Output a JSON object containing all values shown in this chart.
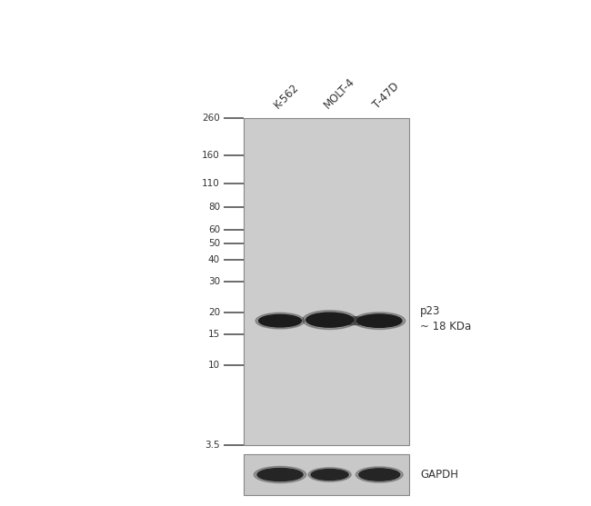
{
  "bg_color": "#ffffff",
  "blot_bg": "#cccccc",
  "gapdh_bg": "#c8c8c8",
  "border_color": "#888888",
  "band_color_main": "#1c1c1c",
  "band_color_gapdh": "#252525",
  "ladder_labels": [
    "260",
    "160",
    "110",
    "80",
    "60",
    "50",
    "40",
    "30",
    "20",
    "15",
    "10",
    "3.5"
  ],
  "ladder_kda": [
    260,
    160,
    110,
    80,
    60,
    50,
    40,
    30,
    20,
    15,
    10,
    3.5
  ],
  "sample_labels": [
    "K-562",
    "MOLT-4",
    "T-47D"
  ],
  "annotation_line1": "p23",
  "annotation_line2": "~ 18 KDa",
  "gapdh_label": "GAPDH",
  "target_band_kda": 18,
  "fig_width": 6.5,
  "fig_height": 5.57,
  "dpi": 100
}
